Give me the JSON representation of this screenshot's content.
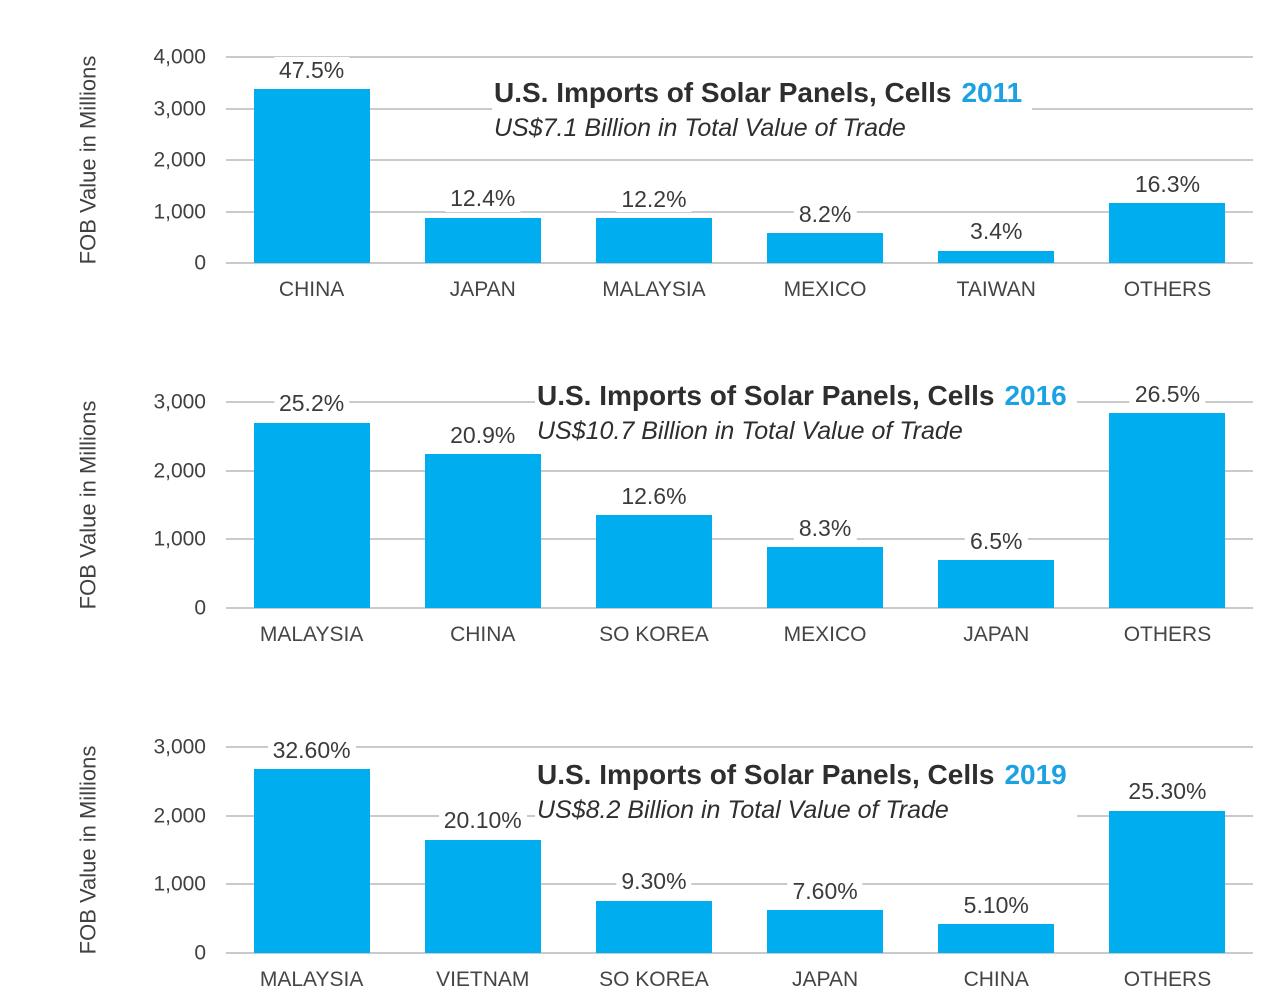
{
  "colors": {
    "bar": "#00AEEF",
    "year_accent": "#1CA2E3",
    "gridline": "#C9CACB",
    "title_text": "#2E2E30",
    "label_text": "#3B3B3D",
    "axis_text": "#414042",
    "background": "#FFFFFF"
  },
  "chart_data": [
    {
      "type": "bar",
      "title": "U.S. Imports of Solar Panels, Cells",
      "year_label": "2011",
      "subtitle": "US$7.1 Billion in Total Value of Trade",
      "total_trade_usd_billion": 7.1,
      "ylabel": "FOB Value in Millions",
      "xlabel": "",
      "ylim": [
        0,
        4000
      ],
      "grid": true,
      "legend": "none",
      "ytick_values": [
        0,
        1000,
        2000,
        3000,
        4000
      ],
      "ytick_labels": [
        "0",
        "1,000",
        "2,000",
        "3,000",
        "4,000"
      ],
      "categories": [
        "CHINA",
        "JAPAN",
        "MALAYSIA",
        "MEXICO",
        "TAIWAN",
        "OTHERS"
      ],
      "values": [
        3373,
        880,
        866,
        582,
        241,
        1157
      ],
      "percent_values": [
        47.5,
        12.4,
        12.2,
        8.2,
        3.4,
        16.3
      ],
      "bar_labels": [
        "47.5%",
        "12.4%",
        "12.2%",
        "8.2%",
        "3.4%",
        "16.3%"
      ]
    },
    {
      "type": "bar",
      "title": "U.S. Imports of Solar Panels, Cells",
      "year_label": "2016",
      "subtitle": "US$10.7 Billion in Total Value of Trade",
      "total_trade_usd_billion": 10.7,
      "ylabel": "FOB Value in Millions",
      "xlabel": "",
      "ylim": [
        0,
        3000
      ],
      "grid": true,
      "legend": "none",
      "ytick_values": [
        0,
        1000,
        2000,
        3000
      ],
      "ytick_labels": [
        "0",
        "1,000",
        "2,000",
        "3,000"
      ],
      "categories": [
        "MALAYSIA",
        "CHINA",
        "SO KOREA",
        "MEXICO",
        "JAPAN",
        "OTHERS"
      ],
      "values": [
        2696,
        2236,
        1348,
        888,
        696,
        2836
      ],
      "percent_values": [
        25.2,
        20.9,
        12.6,
        8.3,
        6.5,
        26.5
      ],
      "bar_labels": [
        "25.2%",
        "20.9%",
        "12.6%",
        "8.3%",
        "6.5%",
        "26.5%"
      ]
    },
    {
      "type": "bar",
      "title": "U.S. Imports of Solar Panels, Cells",
      "year_label": "2019",
      "subtitle": "US$8.2 Billion in Total Value of Trade",
      "total_trade_usd_billion": 8.2,
      "ylabel": "FOB Value in Millions",
      "xlabel": "",
      "ylim": [
        0,
        3000
      ],
      "grid": true,
      "legend": "none",
      "ytick_values": [
        0,
        1000,
        2000,
        3000
      ],
      "ytick_labels": [
        "0",
        "1,000",
        "2,000",
        "3,000"
      ],
      "categories": [
        "MALAYSIA",
        "VIETNAM",
        "SO KOREA",
        "JAPAN",
        "CHINA",
        "OTHERS"
      ],
      "values": [
        2673,
        1648,
        763,
        623,
        418,
        2075
      ],
      "percent_values": [
        32.6,
        20.1,
        9.3,
        7.6,
        5.1,
        25.3
      ],
      "bar_labels": [
        "32.60%",
        "20.10%",
        "9.30%",
        "7.60%",
        "5.10%",
        "25.30%"
      ]
    }
  ]
}
